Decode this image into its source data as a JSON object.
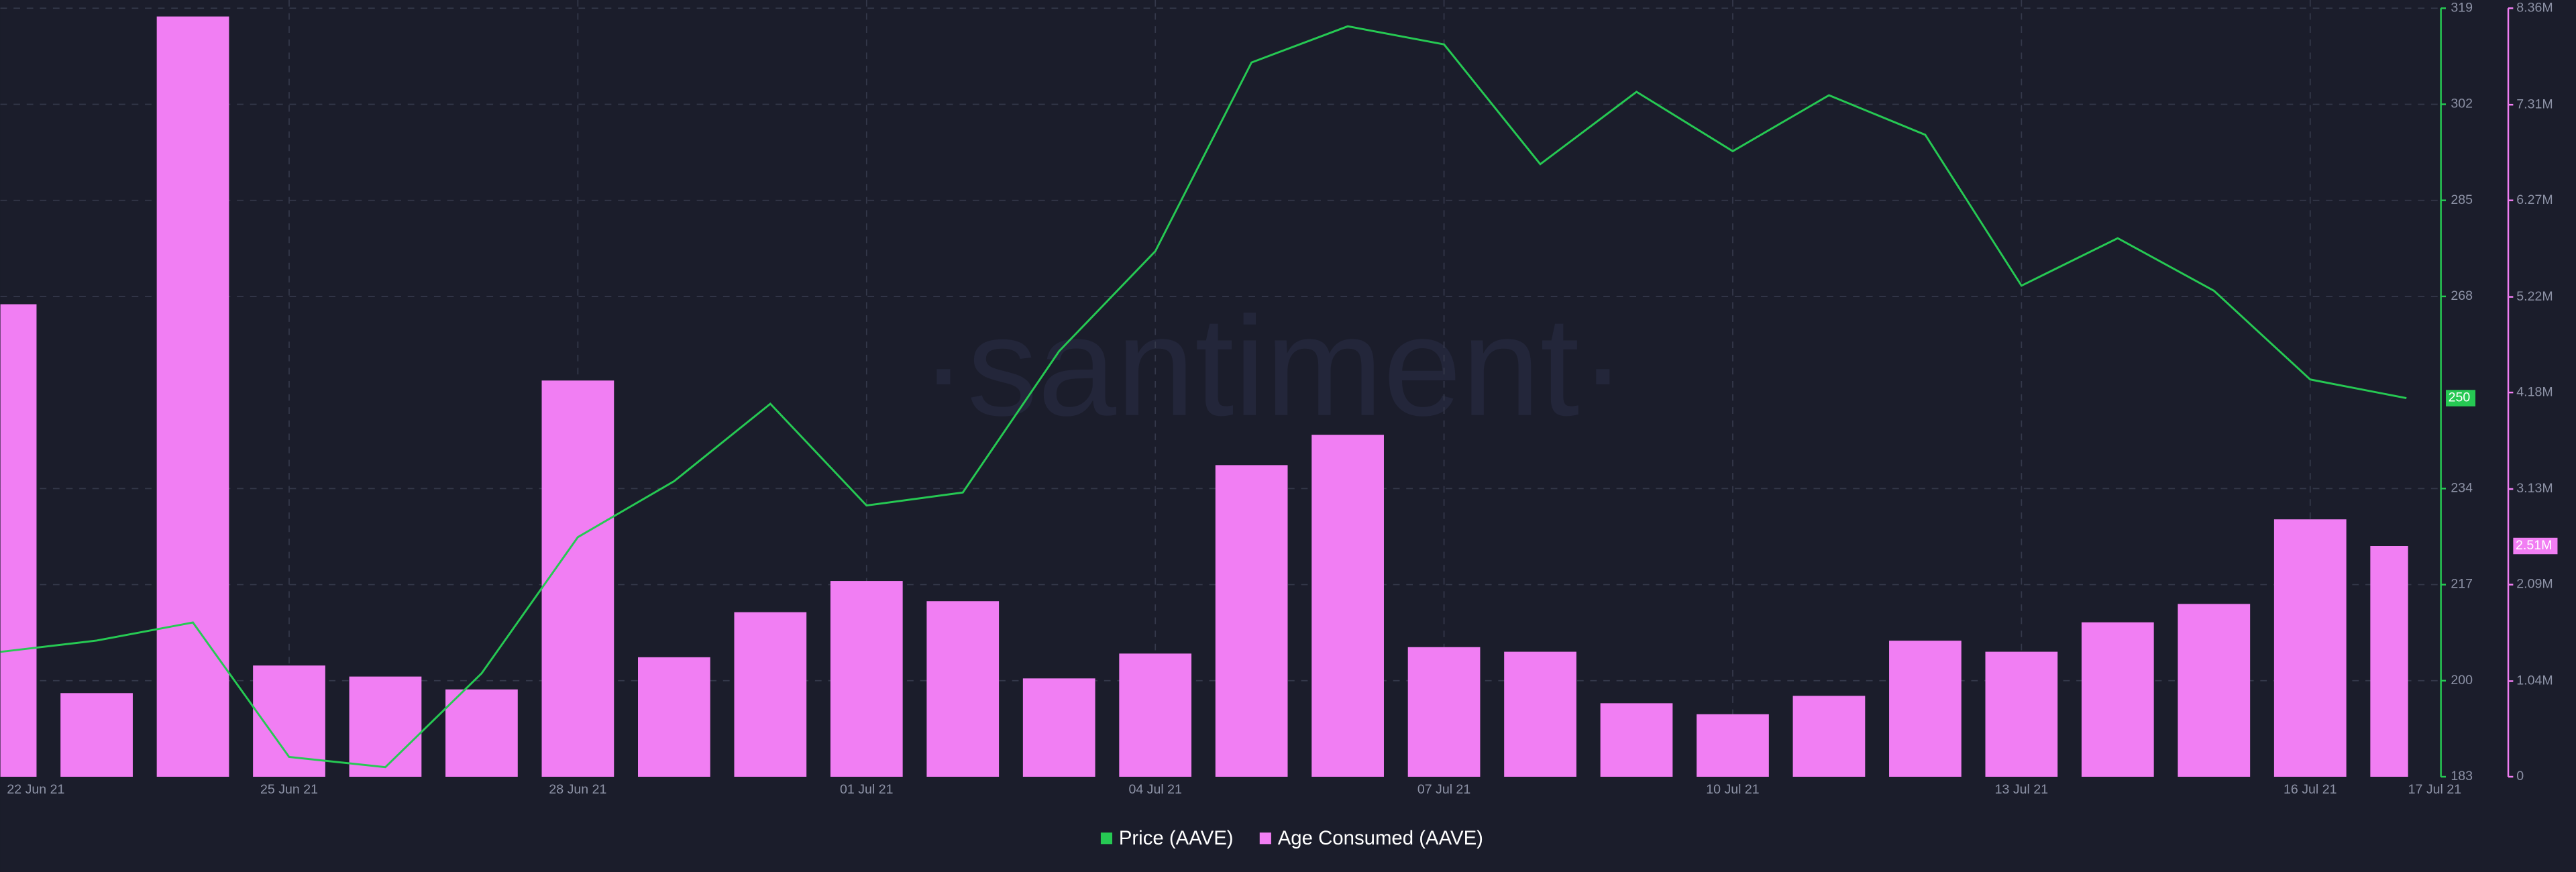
{
  "chart_data": {
    "type": "bar-line",
    "watermark": "·santiment·",
    "categories": [
      "22 Jun 21",
      null,
      null,
      "25 Jun 21",
      null,
      null,
      "28 Jun 21",
      null,
      null,
      "01 Jul 21",
      null,
      null,
      "04 Jul 21",
      null,
      null,
      "07 Jul 21",
      null,
      null,
      "10 Jul 21",
      null,
      null,
      "13 Jul 21",
      null,
      null,
      "16 Jul 21",
      "17 Jul 21"
    ],
    "series": [
      {
        "name": "Price (AAVE)",
        "color": "#26c953",
        "kind": "line",
        "axis": "y",
        "values": [
          205.1,
          207.1,
          210.3,
          186.5,
          184.7,
          201.3,
          225.4,
          235.3,
          249,
          231,
          233.3,
          258.3,
          276,
          309.4,
          315.8,
          312.6,
          291.4,
          304.2,
          293.7,
          303.6,
          296.6,
          269.9,
          278.3,
          269,
          253.3,
          250
        ]
      },
      {
        "name": "Age Consumed (AAVE)",
        "color": "#f17ef3",
        "kind": "bar",
        "axis": "y2",
        "values": [
          5140000,
          910000,
          8270000,
          1210000,
          1090000,
          950000,
          4310000,
          1300000,
          1790000,
          2130000,
          1910000,
          1070000,
          1340000,
          3390000,
          3720000,
          1410000,
          1360000,
          800000,
          680000,
          880000,
          1480000,
          1360000,
          1680000,
          1880000,
          2800000,
          2510000
        ],
        "value_labels": [
          null,
          null,
          null,
          null,
          null,
          null,
          null,
          null,
          null,
          null,
          null,
          null,
          null,
          null,
          null,
          null,
          null,
          null,
          null,
          null,
          null,
          null,
          null,
          null,
          null,
          "2.51M"
        ]
      }
    ],
    "ylim": [
      183,
      319
    ],
    "yticks": [
      183,
      200,
      217,
      234,
      268,
      285,
      302,
      319
    ],
    "y2lim": [
      0,
      8360000
    ],
    "y2ticks": [
      0,
      {
        "value": 1040000,
        "label": "1.04M"
      },
      {
        "value": 2090000,
        "label": "2.09M"
      },
      {
        "value": 3130000,
        "label": "3.13M"
      },
      {
        "value": 4180000,
        "label": "4.18M"
      },
      {
        "value": 5220000,
        "label": "5.22M"
      },
      {
        "value": 6270000,
        "label": "6.27M"
      },
      {
        "value": 7310000,
        "label": "7.31M"
      },
      {
        "value": 8360000,
        "label": "8.36M"
      }
    ],
    "grid": true
  }
}
